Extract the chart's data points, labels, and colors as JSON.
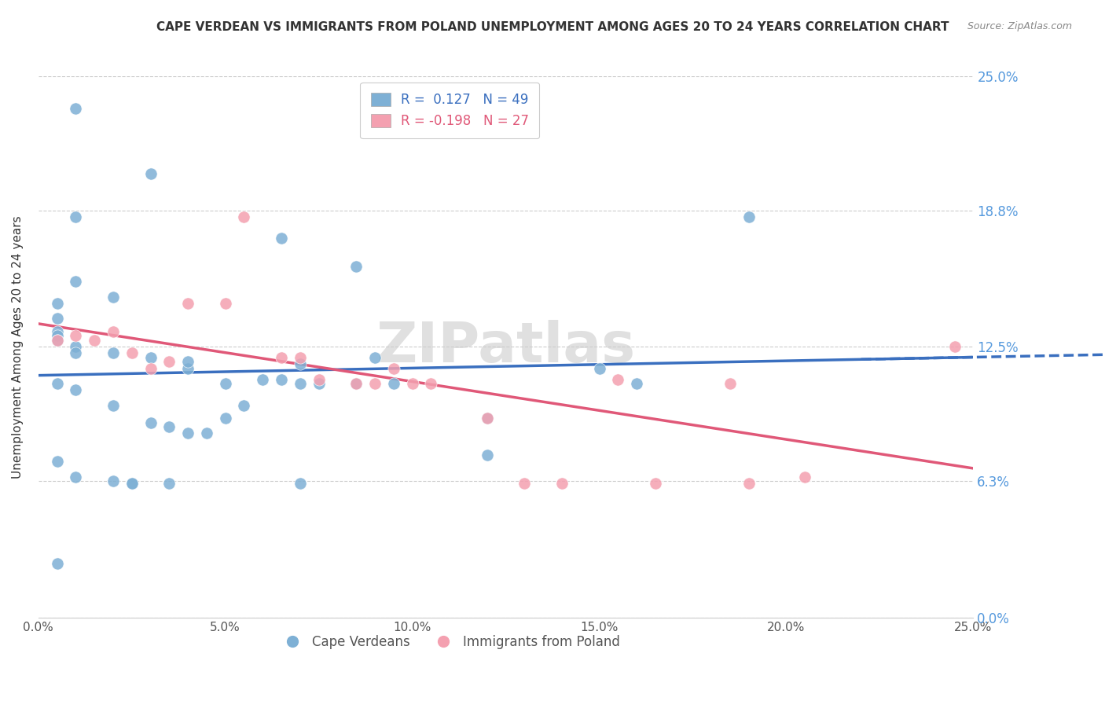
{
  "title": "CAPE VERDEAN VS IMMIGRANTS FROM POLAND UNEMPLOYMENT AMONG AGES 20 TO 24 YEARS CORRELATION CHART",
  "source": "Source: ZipAtlas.com",
  "ylabel": "Unemployment Among Ages 20 to 24 years",
  "xlim": [
    0.0,
    0.25
  ],
  "ylim": [
    0.0,
    0.25
  ],
  "ytick_labels": [
    "0.0%",
    "6.3%",
    "12.5%",
    "18.8%",
    "25.0%"
  ],
  "ytick_values": [
    0.0,
    0.063,
    0.125,
    0.188,
    0.25
  ],
  "color_blue": "#7EB0D5",
  "color_pink": "#F4A0B0",
  "line_blue": "#3A6FBF",
  "line_pink": "#E05878",
  "watermark": "ZIPatlas",
  "blue_points": [
    [
      0.01,
      0.235
    ],
    [
      0.03,
      0.205
    ],
    [
      0.01,
      0.185
    ],
    [
      0.065,
      0.175
    ],
    [
      0.085,
      0.162
    ],
    [
      0.01,
      0.155
    ],
    [
      0.02,
      0.148
    ],
    [
      0.005,
      0.145
    ],
    [
      0.005,
      0.138
    ],
    [
      0.005,
      0.132
    ],
    [
      0.005,
      0.13
    ],
    [
      0.005,
      0.128
    ],
    [
      0.01,
      0.125
    ],
    [
      0.01,
      0.122
    ],
    [
      0.02,
      0.122
    ],
    [
      0.03,
      0.12
    ],
    [
      0.04,
      0.115
    ],
    [
      0.04,
      0.118
    ],
    [
      0.05,
      0.108
    ],
    [
      0.06,
      0.11
    ],
    [
      0.075,
      0.108
    ],
    [
      0.07,
      0.117
    ],
    [
      0.09,
      0.12
    ],
    [
      0.005,
      0.108
    ],
    [
      0.01,
      0.105
    ],
    [
      0.02,
      0.098
    ],
    [
      0.03,
      0.09
    ],
    [
      0.035,
      0.088
    ],
    [
      0.04,
      0.085
    ],
    [
      0.045,
      0.085
    ],
    [
      0.05,
      0.092
    ],
    [
      0.055,
      0.098
    ],
    [
      0.065,
      0.11
    ],
    [
      0.07,
      0.108
    ],
    [
      0.085,
      0.108
    ],
    [
      0.095,
      0.108
    ],
    [
      0.15,
      0.115
    ],
    [
      0.16,
      0.108
    ],
    [
      0.19,
      0.185
    ],
    [
      0.005,
      0.072
    ],
    [
      0.01,
      0.065
    ],
    [
      0.02,
      0.063
    ],
    [
      0.025,
      0.062
    ],
    [
      0.025,
      0.062
    ],
    [
      0.035,
      0.062
    ],
    [
      0.07,
      0.062
    ],
    [
      0.12,
      0.092
    ],
    [
      0.005,
      0.025
    ],
    [
      0.12,
      0.075
    ]
  ],
  "pink_points": [
    [
      0.005,
      0.128
    ],
    [
      0.01,
      0.13
    ],
    [
      0.015,
      0.128
    ],
    [
      0.02,
      0.132
    ],
    [
      0.025,
      0.122
    ],
    [
      0.03,
      0.115
    ],
    [
      0.035,
      0.118
    ],
    [
      0.04,
      0.145
    ],
    [
      0.05,
      0.145
    ],
    [
      0.055,
      0.185
    ],
    [
      0.065,
      0.12
    ],
    [
      0.07,
      0.12
    ],
    [
      0.075,
      0.11
    ],
    [
      0.085,
      0.108
    ],
    [
      0.09,
      0.108
    ],
    [
      0.095,
      0.115
    ],
    [
      0.1,
      0.108
    ],
    [
      0.105,
      0.108
    ],
    [
      0.12,
      0.092
    ],
    [
      0.13,
      0.062
    ],
    [
      0.14,
      0.062
    ],
    [
      0.155,
      0.11
    ],
    [
      0.165,
      0.062
    ],
    [
      0.185,
      0.108
    ],
    [
      0.19,
      0.062
    ],
    [
      0.205,
      0.065
    ],
    [
      0.245,
      0.125
    ]
  ]
}
